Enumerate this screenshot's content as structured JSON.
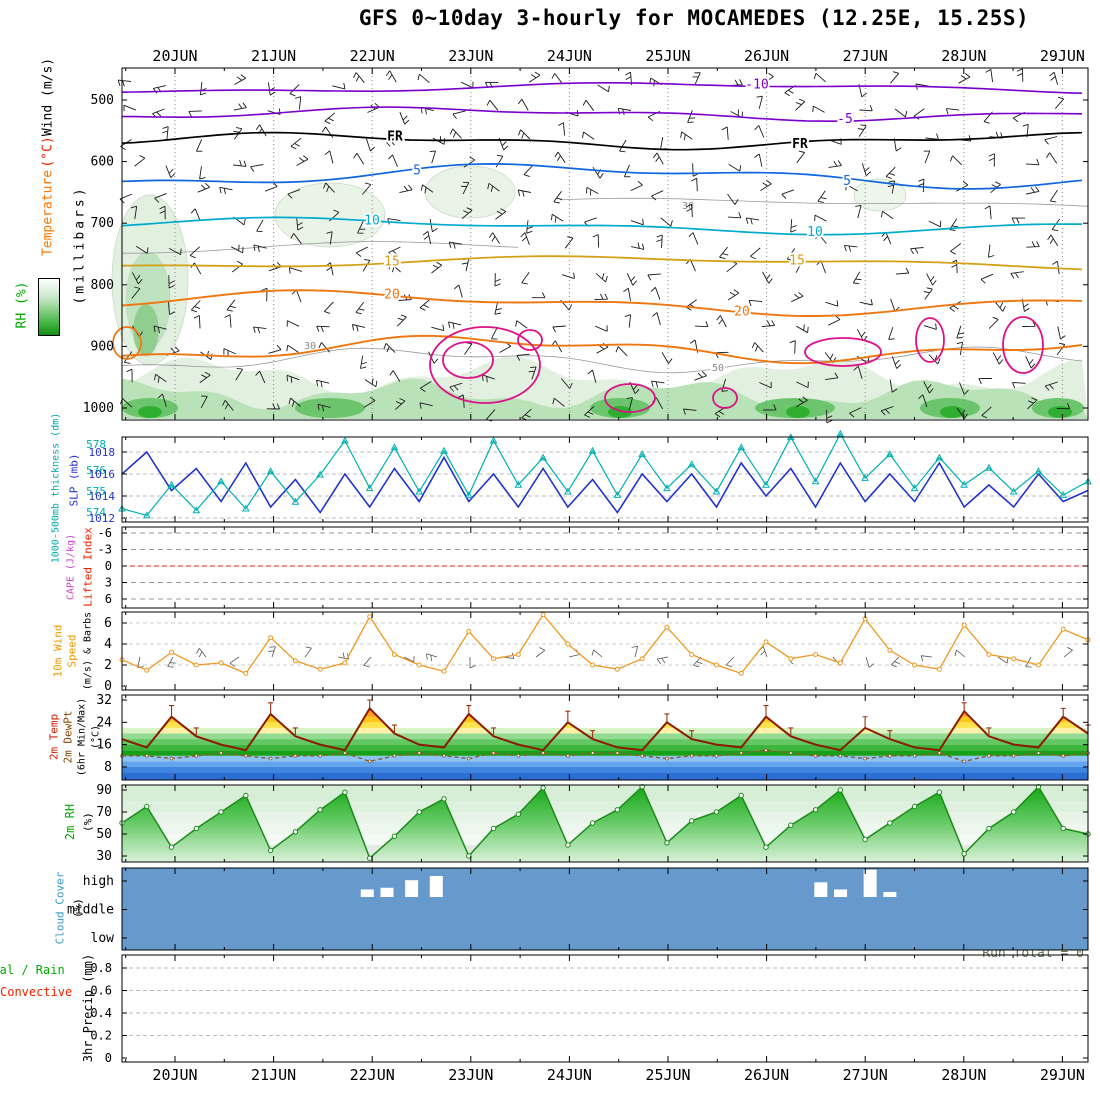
{
  "title": "GFS 0~10day 3-hourly for MOCAMEDES (12.25E, 15.25S)",
  "dates": [
    "20JUN",
    "21JUN",
    "22JUN",
    "23JUN",
    "24JUN",
    "25JUN",
    "26JUN",
    "27JUN",
    "28JUN",
    "29JUN"
  ],
  "labels": {
    "upper_wind": "Wind (m/s)",
    "upper_temp_unit": "(°C)",
    "upper_temp": "Temperature",
    "upper_rh": "RH (%)",
    "upper_pressure": "(millibars)",
    "thickness": "1000-500mb thickness (dm)",
    "slp": "SLP (mb)",
    "li": "Lifted Index",
    "cape": "CAPE (J/kg)",
    "wind10_1": "10m Wind",
    "wind10_2": "Speed",
    "wind10_3": "(m/s) & Barbs",
    "t2_1": "2m Temp",
    "t2_2": "2m DewPt",
    "t2_3": "(6hr Min/Max)",
    "t2_4": "(°C)",
    "rh2_1": "2m RH",
    "rh2_2": "(%)",
    "cloud_1": "Cloud Cover",
    "cloud_2": "(%)",
    "precip_1": "Total / Rain",
    "precip_2": "Convective",
    "precip_unit": "3hr Precip (mm)",
    "run_total": "Run Total = 0",
    "freezing": "FR"
  },
  "axes": {
    "pressure_ticks": [
      500,
      600,
      700,
      800,
      900,
      1000
    ],
    "thickness_ticks": [
      578,
      576,
      575,
      574
    ],
    "slp_ticks": [
      1018,
      1016,
      1014,
      1012
    ],
    "li_ticks": [
      -6,
      -3,
      0,
      3,
      6
    ],
    "wind_ticks": [
      6,
      4,
      2,
      0
    ],
    "temp_ticks": [
      32,
      24,
      16,
      8
    ],
    "rh_ticks": [
      90,
      70,
      50,
      30
    ],
    "cloud_rows": [
      "high",
      "middle",
      "low"
    ],
    "precip_ticks": [
      0.8,
      0.6,
      0.4,
      0.2,
      0
    ]
  },
  "chart_data": [
    {
      "type": "heatmap",
      "panel": "upper-air time-height section 500-1000 mb with wind barbs",
      "temperature_contours_c": [
        -10,
        -5,
        5,
        10,
        15,
        20
      ],
      "freezing_line_label": "FR",
      "rh_contours_pct": [
        30,
        50,
        70
      ],
      "rh_shading": "green shading, darkest near 1000mb moist layer",
      "extra_contours": "magenta closed contours near 900-1000mb"
    },
    {
      "type": "line",
      "x_step_hours": 6,
      "series": [
        {
          "name": "SLP (mb)",
          "color": "#2233cc",
          "values": [
            1016,
            1018,
            1014.5,
            1016.5,
            1013.5,
            1017,
            1013,
            1015.5,
            1012.5,
            1016,
            1013,
            1016.5,
            1013.5,
            1017.5,
            1013.5,
            1016,
            1013,
            1016.5,
            1013,
            1015.5,
            1012.5,
            1016,
            1013.5,
            1016,
            1013,
            1017,
            1014,
            1016.5,
            1013,
            1017,
            1013.5,
            1016,
            1013.5,
            1017,
            1013,
            1015,
            1013,
            1016,
            1013.5,
            1014.5
          ]
        },
        {
          "name": "1000-500mb thickness (dm)",
          "color": "#00b0b0",
          "marker": "triangle",
          "values": [
            574.2,
            573.8,
            575.6,
            574.1,
            575.8,
            574.2,
            576.4,
            574.6,
            576.2,
            578.2,
            575.4,
            577.8,
            575.2,
            577.6,
            575,
            578.2,
            575.6,
            577.2,
            575.2,
            577.6,
            575,
            577.4,
            575.4,
            576.8,
            575.2,
            577.8,
            575.6,
            578.4,
            575.8,
            578.6,
            576,
            577.4,
            575.4,
            577.2,
            575.6,
            576.6,
            575.2,
            576.4,
            575,
            575.8
          ]
        }
      ],
      "ylim_slp": [
        1012,
        1019
      ],
      "ylim_thickness": [
        573.5,
        578.5
      ]
    },
    {
      "type": "line",
      "series": [
        {
          "name": "Lifted Index",
          "color": "#000000",
          "constant": 0
        },
        {
          "name": "CAPE (J/kg)",
          "color": "#dd44dd",
          "constant": 0
        }
      ],
      "zero_line_color": "#ee2222",
      "ylim": [
        -6,
        6
      ]
    },
    {
      "type": "line",
      "series": [
        {
          "name": "10m Wind Speed (m/s)",
          "color": "#ee9922",
          "marker": "circle",
          "values": [
            2.5,
            1.5,
            3.2,
            2,
            2.2,
            1.2,
            4.6,
            2.4,
            1.6,
            2.2,
            6.6,
            3,
            2,
            1.4,
            5.2,
            2.6,
            3,
            6.8,
            4,
            2,
            1.6,
            2.6,
            5.6,
            3,
            2,
            1.2,
            4.2,
            2.6,
            3,
            2.2,
            6.4,
            3.4,
            2,
            1.6,
            5.8,
            3,
            2.6,
            2,
            5.4,
            4.4
          ]
        }
      ],
      "ylim": [
        0,
        7
      ],
      "annotation": "gray wind barbs along mid-panel"
    },
    {
      "type": "line",
      "series": [
        {
          "name": "2m Temp (C)",
          "color": "#8b1a00",
          "values": [
            18,
            15,
            26,
            19,
            16,
            14,
            27,
            19,
            16,
            14,
            29,
            20,
            16,
            15,
            27,
            19,
            16,
            14,
            24,
            18,
            15,
            14,
            24,
            18,
            16,
            15,
            26,
            19,
            16,
            14,
            22,
            18,
            15,
            14,
            28,
            19,
            16,
            15,
            26,
            20
          ]
        },
        {
          "name": "6hr Max (C)",
          "values": [
            19,
            16,
            30,
            22,
            17,
            15,
            31,
            22,
            17,
            15,
            32,
            23,
            17,
            16,
            30,
            22,
            17,
            15,
            28,
            21,
            16,
            15,
            27,
            21,
            17,
            16,
            30,
            22,
            17,
            15,
            26,
            21,
            16,
            15,
            31,
            22,
            17,
            16,
            29,
            23
          ]
        },
        {
          "name": "6hr Min (C)",
          "values": [
            17,
            14,
            25,
            18,
            15,
            13,
            26,
            18,
            15,
            13,
            28,
            19,
            15,
            14,
            26,
            18,
            15,
            13,
            23,
            17,
            14,
            13,
            23,
            17,
            15,
            14,
            25,
            18,
            15,
            13,
            21,
            17,
            14,
            13,
            27,
            18,
            15,
            14,
            25,
            19
          ]
        },
        {
          "name": "2m DewPt (C)",
          "color": "#8b5a2b",
          "style": "dashed",
          "values": [
            12,
            12,
            11,
            12,
            13,
            12,
            11,
            12,
            12,
            13,
            10,
            12,
            13,
            12,
            11,
            13,
            12,
            13,
            12,
            13,
            13,
            12,
            11,
            12,
            12,
            13,
            14,
            13,
            12,
            12,
            11,
            12,
            12,
            13,
            10,
            12,
            12,
            13,
            12,
            13
          ]
        }
      ],
      "ylim": [
        4,
        34
      ],
      "background": "temperature color bands, warm fill under curve above 20C"
    },
    {
      "type": "area",
      "series": [
        {
          "name": "2m RH (%)",
          "color": "#1d8a1d",
          "marker": "circle",
          "values": [
            60,
            75,
            38,
            55,
            70,
            85,
            35,
            52,
            72,
            88,
            28,
            48,
            70,
            82,
            30,
            55,
            68,
            92,
            40,
            60,
            72,
            93,
            42,
            62,
            70,
            85,
            38,
            58,
            72,
            90,
            45,
            60,
            75,
            88,
            32,
            55,
            70,
            93,
            55,
            50
          ]
        }
      ],
      "ylim": [
        25,
        95
      ]
    },
    {
      "type": "bar",
      "name": "Cloud Cover (white bars above middle line, %)",
      "bars": [
        {
          "day_offset": 1.95,
          "pct": 18
        },
        {
          "day_offset": 2.15,
          "pct": 22
        },
        {
          "day_offset": 2.4,
          "pct": 40
        },
        {
          "day_offset": 2.65,
          "pct": 50
        },
        {
          "day_offset": 6.55,
          "pct": 35
        },
        {
          "day_offset": 6.75,
          "pct": 18
        },
        {
          "day_offset": 7.05,
          "pct": 65
        },
        {
          "day_offset": 7.25,
          "pct": 12
        }
      ],
      "rows": [
        "high",
        "middle",
        "low"
      ],
      "background_color": "#6699cc"
    },
    {
      "type": "bar",
      "name": "3hr Precip (mm)",
      "series": [
        {
          "name": "Total / Rain",
          "color": "#00aa00",
          "constant": 0
        },
        {
          "name": "Convective",
          "color": "#ee2200",
          "constant": 0
        }
      ],
      "ylim": [
        0,
        0.9
      ],
      "run_total": 0
    }
  ]
}
